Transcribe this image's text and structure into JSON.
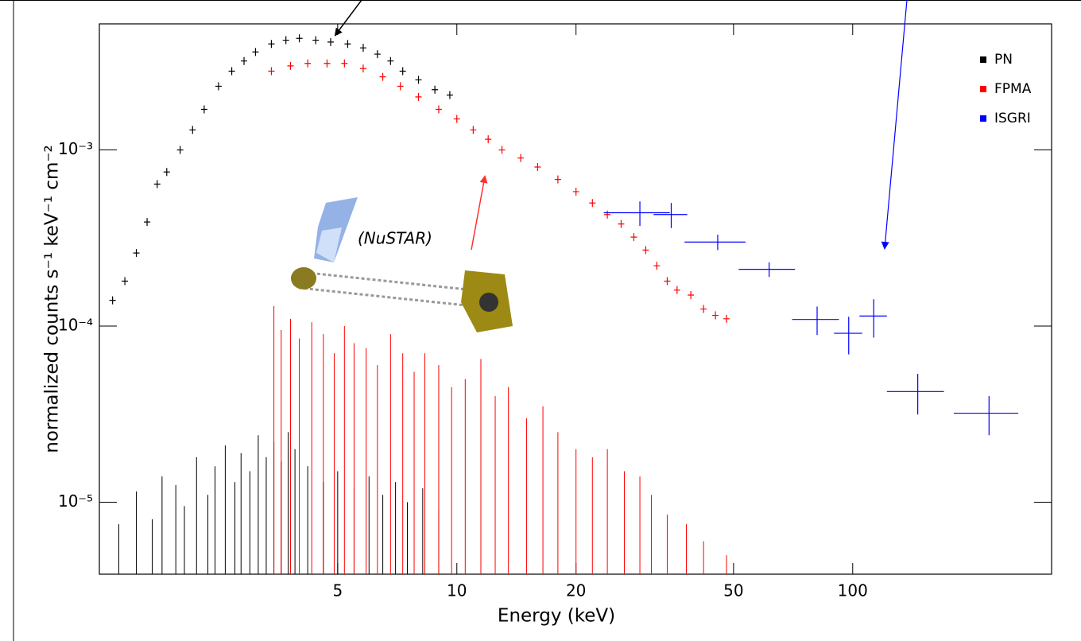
{
  "chart_data": {
    "type": "errorbar",
    "xlabel": "Energy (keV)",
    "ylabel": "normalized counts s⁻¹ keV⁻¹ cm⁻²",
    "annotation": "(NuSTAR)",
    "xscale": "log",
    "yscale": "log",
    "xlim": [
      1.25,
      318
    ],
    "ylim": [
      3.9e-06,
      0.0052
    ],
    "xticks": [
      5,
      10,
      20,
      50,
      100
    ],
    "yticks": [
      {
        "value": 1e-05,
        "label": "10⁻⁵"
      },
      {
        "value": 0.0001,
        "label": "10⁻⁴"
      },
      {
        "value": 0.001,
        "label": "10⁻³"
      }
    ],
    "legend": "upper right",
    "series": [
      {
        "name": "PN",
        "color": "#000000",
        "x": [
          1.35,
          1.45,
          1.55,
          1.65,
          1.75,
          1.85,
          2.0,
          2.15,
          2.3,
          2.5,
          2.7,
          2.9,
          3.1,
          3.4,
          3.7,
          4.0,
          4.4,
          4.8,
          5.3,
          5.8,
          6.3,
          6.8,
          7.3,
          8.0,
          8.8,
          9.6
        ],
        "values": [
          0.00014,
          0.00018,
          0.00026,
          0.00039,
          0.00064,
          0.00075,
          0.001,
          0.0013,
          0.0017,
          0.0023,
          0.0028,
          0.0032,
          0.0036,
          0.004,
          0.0042,
          0.0043,
          0.0042,
          0.0041,
          0.004,
          0.0038,
          0.0035,
          0.0032,
          0.0028,
          0.0025,
          0.0022,
          0.00205
        ]
      },
      {
        "name": "FPMA",
        "color": "#ff0000",
        "x": [
          3.4,
          3.8,
          4.2,
          4.7,
          5.2,
          5.8,
          6.5,
          7.2,
          8.0,
          9.0,
          10,
          11,
          12,
          13,
          14.5,
          16,
          18,
          20,
          22,
          24,
          26,
          28,
          30,
          32,
          34,
          36,
          39,
          42,
          45,
          48
        ],
        "values": [
          0.0028,
          0.003,
          0.0031,
          0.0031,
          0.0031,
          0.0029,
          0.0026,
          0.0023,
          0.002,
          0.0017,
          0.0015,
          0.0013,
          0.00115,
          0.001,
          0.0009,
          0.0008,
          0.00068,
          0.00058,
          0.0005,
          0.00043,
          0.00038,
          0.00032,
          0.00027,
          0.00022,
          0.00018,
          0.00016,
          0.00015,
          0.000125,
          0.000115,
          0.00011
        ]
      },
      {
        "name": "ISGRI",
        "color": "#0000ff",
        "x": [
          29,
          34.8,
          45.6,
          61.5,
          81.3,
          97.7,
          113,
          146,
          221
        ],
        "xerr": [
          5.5,
          3.4,
          8,
          10,
          11,
          8,
          9,
          24,
          41
        ],
        "values": [
          0.00044,
          0.00043,
          0.0003,
          0.00021,
          0.000109,
          9.1e-05,
          0.000114,
          4.25e-05,
          3.2e-05
        ],
        "yerr": [
          7e-05,
          7e-05,
          3e-05,
          2e-05,
          2e-05,
          2.2e-05,
          2.8e-05,
          1.1e-05,
          8e-06
        ]
      }
    ],
    "background_series": [
      {
        "color": "#000000",
        "x": [
          1.4,
          1.55,
          1.7,
          1.8,
          1.95,
          2.05,
          2.2,
          2.35,
          2.45,
          2.6,
          2.75,
          2.85,
          3.0,
          3.15,
          3.3,
          3.45,
          3.6,
          3.75,
          3.9,
          4.2,
          4.6,
          5.0,
          5.5,
          6.0,
          6.5,
          7.0,
          7.5,
          8.2,
          9.0
        ],
        "values": [
          7.5e-06,
          1.15e-05,
          8e-06,
          1.4e-05,
          1.25e-05,
          9.5e-06,
          1.8e-05,
          1.1e-05,
          1.6e-05,
          2.1e-05,
          1.3e-05,
          1.9e-05,
          1.5e-05,
          2.4e-05,
          1.8e-05,
          2.2e-05,
          1.7e-05,
          2.5e-05,
          2e-05,
          1.6e-05,
          1.3e-05,
          1.5e-05,
          1.2e-05,
          1.4e-05,
          1.1e-05,
          1.3e-05,
          1e-05,
          1.2e-05,
          9e-06
        ]
      },
      {
        "color": "#ff0000",
        "x": [
          3.45,
          3.6,
          3.8,
          4.0,
          4.3,
          4.6,
          4.9,
          5.2,
          5.5,
          5.9,
          6.3,
          6.8,
          7.3,
          7.8,
          8.3,
          9.0,
          9.7,
          10.5,
          11.5,
          12.5,
          13.5,
          15,
          16.5,
          18,
          20,
          22,
          24,
          26.5,
          29,
          31,
          34,
          38,
          42,
          48
        ],
        "values": [
          0.00013,
          9.5e-05,
          0.00011,
          8.5e-05,
          0.000105,
          9e-05,
          7e-05,
          0.0001,
          8e-05,
          7.5e-05,
          6e-05,
          9e-05,
          7e-05,
          5.5e-05,
          7e-05,
          6e-05,
          4.5e-05,
          5e-05,
          6.5e-05,
          4e-05,
          4.5e-05,
          3e-05,
          3.5e-05,
          2.5e-05,
          2e-05,
          1.8e-05,
          2e-05,
          1.5e-05,
          1.4e-05,
          1.1e-05,
          8.5e-06,
          7.5e-06,
          6e-06,
          5e-06
        ]
      }
    ]
  }
}
